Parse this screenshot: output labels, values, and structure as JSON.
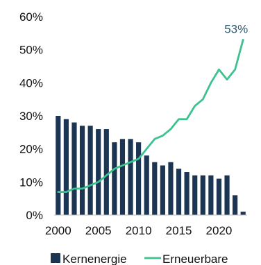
{
  "chart_data": {
    "type": "bar",
    "title": "",
    "xlabel": "",
    "ylabel": "",
    "x": [
      2000,
      2001,
      2002,
      2003,
      2004,
      2005,
      2006,
      2007,
      2008,
      2009,
      2010,
      2011,
      2012,
      2013,
      2014,
      2015,
      2016,
      2017,
      2018,
      2019,
      2020,
      2021,
      2022,
      2023
    ],
    "ylim": [
      0,
      60
    ],
    "yticks": [
      0,
      10,
      20,
      30,
      40,
      50,
      60
    ],
    "ytick_labels": [
      "0%",
      "10%",
      "20%",
      "30%",
      "40%",
      "50%",
      "60%"
    ],
    "xticks": [
      2000,
      2005,
      2010,
      2015,
      2020
    ],
    "xtick_labels": [
      "2000",
      "2005",
      "2010",
      "2015",
      "2020"
    ],
    "grid": false,
    "legend_position": "bottom",
    "series": [
      {
        "name": "Kernenergie",
        "type": "bar",
        "color": "#1b3553",
        "values": [
          30,
          29,
          28,
          27,
          27,
          26,
          26,
          22,
          23,
          23,
          22,
          18,
          16,
          15,
          16,
          14,
          13,
          12,
          12,
          12,
          11,
          12,
          6,
          1
        ]
      },
      {
        "name": "Erneuerbare",
        "type": "line",
        "color": "#3cc28e",
        "values": [
          7,
          7,
          8,
          8,
          9,
          10,
          12,
          14,
          15,
          16,
          17,
          20,
          23,
          24,
          26,
          29,
          29,
          33,
          35,
          40,
          44,
          41,
          44,
          53
        ]
      }
    ],
    "annotations": [
      {
        "text": "53%",
        "series": "Erneuerbare",
        "x": 2023,
        "color": "#2f5a6e"
      }
    ]
  }
}
